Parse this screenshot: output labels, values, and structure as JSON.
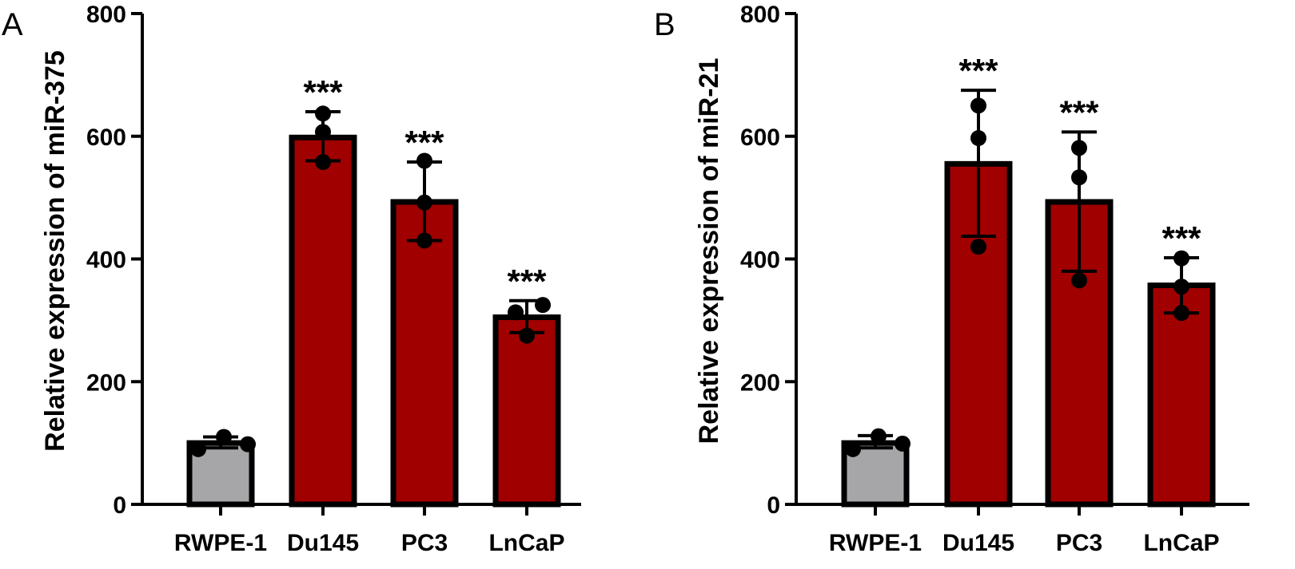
{
  "chart_data": [
    {
      "panel": "A",
      "type": "bar",
      "title": "",
      "xlabel": "",
      "ylabel": "Relative expression of miR-375",
      "ylim": [
        0,
        800
      ],
      "yticks": [
        0,
        200,
        400,
        600,
        800
      ],
      "categories": [
        "RWPE-1",
        "Du145",
        "PC3",
        "LnCaP"
      ],
      "values": [
        100,
        598,
        493,
        305
      ],
      "error": [
        [
          92,
          110
        ],
        [
          560,
          640
        ],
        [
          430,
          558
        ],
        [
          280,
          332
        ]
      ],
      "points": [
        [
          90,
          110,
          98
        ],
        [
          558,
          607,
          637
        ],
        [
          430,
          492,
          560
        ],
        [
          275,
          313,
          325
        ]
      ],
      "colors": [
        "#a6a6a8",
        "#a00000",
        "#a00000",
        "#a00000"
      ],
      "significance": [
        "",
        "***",
        "***",
        "***"
      ]
    },
    {
      "panel": "B",
      "type": "bar",
      "title": "",
      "xlabel": "",
      "ylabel": "Relative expression of miR-21",
      "ylim": [
        0,
        800
      ],
      "yticks": [
        0,
        200,
        400,
        600,
        800
      ],
      "categories": [
        "RWPE-1",
        "Du145",
        "PC3",
        "LnCaP"
      ],
      "values": [
        100,
        555,
        493,
        357
      ],
      "error": [
        [
          92,
          112
        ],
        [
          437,
          675
        ],
        [
          380,
          607
        ],
        [
          312,
          402
        ]
      ],
      "points": [
        [
          90,
          111,
          99
        ],
        [
          420,
          597,
          650
        ],
        [
          365,
          533,
          581
        ],
        [
          312,
          355,
          401
        ]
      ],
      "colors": [
        "#a6a6a8",
        "#a00000",
        "#a00000",
        "#a00000"
      ],
      "significance": [
        "",
        "***",
        "***",
        "***"
      ]
    }
  ]
}
